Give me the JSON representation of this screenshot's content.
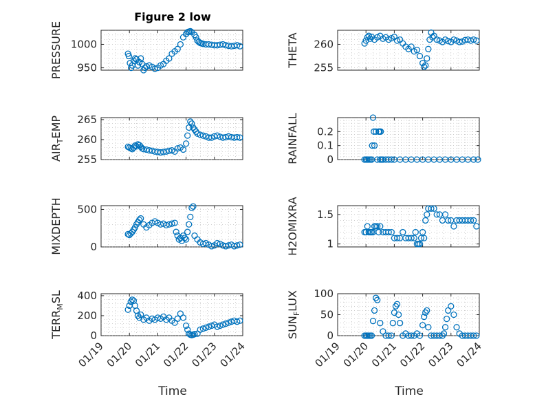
{
  "title": "Figure 2 low",
  "time_labels": [
    "01/19",
    "01/20",
    "01/21",
    "01/22",
    "01/23",
    "01/24"
  ],
  "xlabel": "Time",
  "colors": {
    "marker": "#0072BD",
    "axes": "#262626"
  },
  "chart_data": [
    {
      "type": "scatter",
      "key": "pressure",
      "ylabel": "PRESSURE",
      "ylim": [
        945,
        1030
      ],
      "yticks": [
        950,
        1000
      ],
      "ytick_labels": [
        "950",
        "1000"
      ],
      "x": [
        0.95,
        0.98,
        1.02,
        1.06,
        1.1,
        1.15,
        1.2,
        1.25,
        1.3,
        1.35,
        1.4,
        1.45,
        1.5,
        1.55,
        1.6,
        1.7,
        1.8,
        1.9,
        2.0,
        2.1,
        2.2,
        2.3,
        2.4,
        2.5,
        2.6,
        2.7,
        2.8,
        2.9,
        3.0,
        3.05,
        3.1,
        3.15,
        3.2,
        3.3,
        3.35,
        3.4,
        3.45,
        3.5,
        3.55,
        3.6,
        3.7,
        3.8,
        3.9,
        4.0,
        4.1,
        4.2,
        4.3,
        4.4,
        4.5,
        4.6,
        4.7,
        4.8,
        4.9
      ],
      "y": [
        980,
        975,
        960,
        950,
        955,
        965,
        970,
        968,
        955,
        962,
        970,
        958,
        945,
        950,
        953,
        955,
        952,
        948,
        950,
        955,
        958,
        965,
        970,
        980,
        985,
        990,
        1000,
        1015,
        1022,
        1026,
        1027,
        1028,
        1026,
        1020,
        1015,
        1008,
        1005,
        1003,
        1002,
        1001,
        1000,
        1000,
        999,
        998,
        998,
        999,
        1000,
        998,
        997,
        996,
        997,
        998,
        996
      ]
    },
    {
      "type": "scatter",
      "key": "theta",
      "ylabel": "THETA",
      "ylim": [
        254.5,
        263
      ],
      "yticks": [
        255,
        260
      ],
      "ytick_labels": [
        "255",
        "260"
      ],
      "x": [
        0.95,
        1.0,
        1.05,
        1.1,
        1.15,
        1.2,
        1.3,
        1.4,
        1.5,
        1.6,
        1.7,
        1.8,
        1.9,
        2.0,
        2.1,
        2.2,
        2.3,
        2.4,
        2.5,
        2.6,
        2.7,
        2.8,
        2.9,
        3.0,
        3.05,
        3.1,
        3.15,
        3.2,
        3.25,
        3.3,
        3.35,
        3.4,
        3.5,
        3.6,
        3.7,
        3.8,
        3.9,
        4.0,
        4.1,
        4.2,
        4.3,
        4.4,
        4.5,
        4.6,
        4.7,
        4.8,
        4.9
      ],
      "y": [
        260.2,
        260.8,
        261.5,
        261.8,
        261.2,
        261.6,
        261.0,
        261.5,
        261.8,
        261.2,
        261.5,
        261.0,
        261.3,
        261.6,
        260.8,
        261.0,
        260.2,
        259.5,
        259.0,
        259.5,
        258.5,
        258.8,
        257.5,
        256.0,
        255.2,
        255.5,
        257.0,
        259.0,
        261.0,
        262.5,
        261.5,
        261.8,
        261.0,
        260.8,
        260.5,
        261.0,
        260.7,
        260.5,
        261.0,
        260.8,
        260.5,
        260.6,
        260.9,
        261.0,
        260.8,
        261.0,
        260.8
      ]
    },
    {
      "type": "scatter",
      "key": "air_temp",
      "ylabel": "AIR_TEMP",
      "ylabel_main": "AIR",
      "ylabel_sub": "T",
      "ylabel_rest": "EMP",
      "ylim": [
        255,
        265.5
      ],
      "yticks": [
        255,
        260,
        265
      ],
      "ytick_labels": [
        "255",
        "260",
        "265"
      ],
      "x": [
        0.95,
        1.0,
        1.05,
        1.1,
        1.15,
        1.2,
        1.25,
        1.3,
        1.35,
        1.4,
        1.45,
        1.5,
        1.6,
        1.7,
        1.8,
        1.9,
        2.0,
        2.1,
        2.2,
        2.3,
        2.4,
        2.5,
        2.6,
        2.7,
        2.8,
        2.9,
        3.0,
        3.05,
        3.1,
        3.15,
        3.2,
        3.25,
        3.3,
        3.35,
        3.4,
        3.5,
        3.6,
        3.7,
        3.8,
        3.9,
        4.0,
        4.1,
        4.2,
        4.3,
        4.4,
        4.5,
        4.6,
        4.7,
        4.8,
        4.9
      ],
      "y": [
        258.2,
        258.0,
        257.8,
        257.6,
        258.0,
        258.5,
        258.3,
        258.8,
        258.6,
        258.2,
        257.8,
        257.6,
        257.5,
        257.3,
        257.2,
        257.0,
        256.9,
        256.8,
        256.9,
        257.0,
        257.2,
        257.3,
        257.0,
        257.8,
        258.0,
        257.5,
        259.0,
        261.0,
        263.0,
        264.5,
        264.0,
        263.0,
        262.5,
        262.0,
        261.5,
        261.2,
        261.0,
        260.8,
        260.5,
        260.5,
        260.8,
        261.0,
        260.7,
        260.5,
        260.6,
        260.8,
        260.6,
        260.5,
        260.6,
        260.5
      ]
    },
    {
      "type": "scatter",
      "key": "rainfall",
      "ylabel": "RAINFALL",
      "ylim": [
        0,
        0.3
      ],
      "yticks": [
        0,
        0.1,
        0.2
      ],
      "ytick_labels": [
        "0",
        "0.1",
        "0.2"
      ],
      "x": [
        0.95,
        1.0,
        1.05,
        1.1,
        1.15,
        1.2,
        1.22,
        1.25,
        1.28,
        1.3,
        1.35,
        1.4,
        1.45,
        1.48,
        1.5,
        1.52,
        1.55,
        1.6,
        1.7,
        1.8,
        1.9,
        2.0,
        2.2,
        2.4,
        2.6,
        2.8,
        3.0,
        3.2,
        3.4,
        3.6,
        3.8,
        4.0,
        4.2,
        4.4,
        4.6,
        4.8,
        4.95
      ],
      "y": [
        0,
        0,
        0,
        0,
        0,
        0,
        0.1,
        0.3,
        0.2,
        0.1,
        0.2,
        0,
        0.2,
        0.2,
        0,
        0.2,
        0,
        0,
        0,
        0,
        0,
        0,
        0,
        0,
        0,
        0,
        0,
        0,
        0,
        0,
        0,
        0,
        0,
        0,
        0,
        0,
        0
      ]
    },
    {
      "type": "scatter",
      "key": "mixdepth",
      "ylabel": "MIXDEPTH",
      "ylim": [
        0,
        550
      ],
      "yticks": [
        0,
        500
      ],
      "ytick_labels": [
        "0",
        "500"
      ],
      "x": [
        0.95,
        1.0,
        1.05,
        1.1,
        1.15,
        1.2,
        1.25,
        1.3,
        1.35,
        1.4,
        1.5,
        1.6,
        1.7,
        1.8,
        1.9,
        2.0,
        2.1,
        2.2,
        2.3,
        2.4,
        2.5,
        2.6,
        2.65,
        2.7,
        2.75,
        2.8,
        2.85,
        2.9,
        2.95,
        3.0,
        3.05,
        3.1,
        3.15,
        3.2,
        3.25,
        3.3,
        3.4,
        3.5,
        3.6,
        3.7,
        3.8,
        3.9,
        4.0,
        4.1,
        4.2,
        4.3,
        4.4,
        4.5,
        4.6,
        4.7,
        4.8,
        4.9
      ],
      "y": [
        170,
        160,
        180,
        200,
        230,
        260,
        300,
        330,
        360,
        380,
        300,
        260,
        290,
        320,
        340,
        320,
        300,
        310,
        290,
        300,
        310,
        320,
        200,
        150,
        100,
        120,
        80,
        150,
        120,
        100,
        200,
        300,
        400,
        520,
        540,
        150,
        100,
        60,
        40,
        50,
        30,
        10,
        20,
        50,
        40,
        20,
        10,
        20,
        30,
        10,
        20,
        30
      ]
    },
    {
      "type": "scatter",
      "key": "h2omixra",
      "ylabel": "H2OMIXRA",
      "ylim": [
        0.95,
        1.65
      ],
      "yticks": [
        1,
        1.5
      ],
      "ytick_labels": [
        "1",
        "1.5"
      ],
      "x": [
        0.95,
        1.0,
        1.05,
        1.1,
        1.15,
        1.2,
        1.25,
        1.3,
        1.35,
        1.4,
        1.45,
        1.5,
        1.6,
        1.7,
        1.8,
        1.9,
        2.0,
        2.1,
        2.2,
        2.3,
        2.4,
        2.5,
        2.6,
        2.7,
        2.75,
        2.8,
        2.85,
        2.9,
        2.95,
        3.0,
        3.05,
        3.1,
        3.15,
        3.2,
        3.3,
        3.4,
        3.5,
        3.6,
        3.7,
        3.8,
        3.9,
        4.0,
        4.1,
        4.2,
        4.3,
        4.4,
        4.5,
        4.6,
        4.7,
        4.8,
        4.9
      ],
      "y": [
        1.2,
        1.2,
        1.3,
        1.2,
        1.2,
        1.2,
        1.2,
        1.3,
        1.3,
        1.3,
        1.2,
        1.3,
        1.2,
        1.2,
        1.2,
        1.2,
        1.1,
        1.1,
        1.1,
        1.2,
        1.1,
        1.1,
        1.1,
        1.1,
        1.2,
        1.0,
        1.0,
        1.0,
        1.1,
        1.2,
        1.1,
        1.4,
        1.5,
        1.6,
        1.6,
        1.6,
        1.5,
        1.5,
        1.4,
        1.5,
        1.4,
        1.4,
        1.3,
        1.4,
        1.4,
        1.4,
        1.4,
        1.4,
        1.4,
        1.4,
        1.3
      ]
    },
    {
      "type": "scatter",
      "key": "terr_msl",
      "ylabel": "TERR_MSL",
      "ylabel_main": "TERR",
      "ylabel_sub": "M",
      "ylabel_rest": "SL",
      "ylim": [
        0,
        420
      ],
      "yticks": [
        0,
        200,
        400
      ],
      "ytick_labels": [
        "0",
        "200",
        "400"
      ],
      "x": [
        0.95,
        1.0,
        1.05,
        1.1,
        1.15,
        1.2,
        1.25,
        1.3,
        1.35,
        1.4,
        1.5,
        1.6,
        1.7,
        1.8,
        1.9,
        2.0,
        2.1,
        2.2,
        2.3,
        2.4,
        2.5,
        2.6,
        2.7,
        2.8,
        2.9,
        3.0,
        3.05,
        3.1,
        3.15,
        3.2,
        3.25,
        3.3,
        3.4,
        3.5,
        3.6,
        3.7,
        3.8,
        3.9,
        4.0,
        4.1,
        4.2,
        4.3,
        4.4,
        4.5,
        4.6,
        4.7,
        4.8,
        4.9
      ],
      "y": [
        260,
        300,
        340,
        360,
        350,
        300,
        250,
        200,
        180,
        210,
        160,
        180,
        150,
        170,
        160,
        180,
        170,
        190,
        160,
        180,
        150,
        130,
        170,
        220,
        180,
        100,
        60,
        20,
        10,
        5,
        10,
        15,
        20,
        60,
        70,
        80,
        90,
        100,
        110,
        90,
        100,
        110,
        120,
        130,
        140,
        150,
        140,
        150
      ]
    },
    {
      "type": "scatter",
      "key": "sun_flux",
      "ylabel": "SUN_FLUX",
      "ylabel_main": "SUN",
      "ylabel_sub": "F",
      "ylabel_rest": "LUX",
      "ylim": [
        0,
        100
      ],
      "yticks": [
        0,
        50,
        100
      ],
      "ytick_labels": [
        "0",
        "50",
        "100"
      ],
      "x": [
        0.95,
        1.0,
        1.05,
        1.1,
        1.15,
        1.2,
        1.25,
        1.3,
        1.35,
        1.4,
        1.5,
        1.6,
        1.7,
        1.8,
        1.9,
        1.95,
        2.0,
        2.05,
        2.1,
        2.15,
        2.2,
        2.3,
        2.4,
        2.5,
        2.6,
        2.7,
        2.8,
        2.9,
        3.0,
        3.05,
        3.1,
        3.15,
        3.2,
        3.3,
        3.4,
        3.5,
        3.6,
        3.7,
        3.75,
        3.8,
        3.85,
        3.9,
        4.0,
        4.1,
        4.2,
        4.3,
        4.4,
        4.5,
        4.6,
        4.7,
        4.8,
        4.9
      ],
      "y": [
        0,
        0,
        0,
        0,
        0,
        0,
        35,
        60,
        90,
        85,
        30,
        10,
        0,
        0,
        0,
        30,
        55,
        70,
        75,
        50,
        30,
        0,
        5,
        0,
        0,
        0,
        5,
        0,
        25,
        45,
        55,
        60,
        20,
        0,
        0,
        0,
        0,
        0,
        5,
        20,
        40,
        60,
        70,
        50,
        20,
        5,
        0,
        0,
        0,
        0,
        0,
        0
      ]
    }
  ]
}
